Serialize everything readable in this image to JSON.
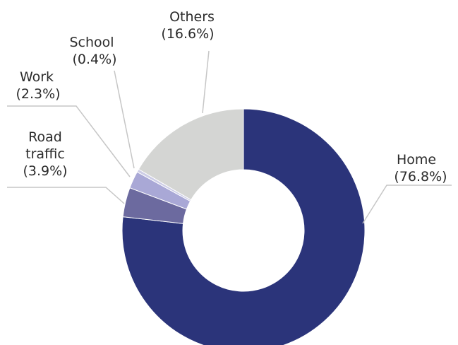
{
  "chart_data": {
    "type": "pie",
    "variant": "donut",
    "title": "",
    "legend": "none",
    "slices": [
      {
        "name": "Home",
        "value": 76.8,
        "value_label": "(76.8%)",
        "color": "#2b347a",
        "label_side": "right"
      },
      {
        "name": "Road traffic",
        "label_lines": [
          "Road",
          "traffic"
        ],
        "value": 3.9,
        "value_label": "(3.9%)",
        "color": "#6c6a9f",
        "label_side": "left"
      },
      {
        "name": "Work",
        "value": 2.3,
        "value_label": "(2.3%)",
        "color": "#a9a8d6",
        "label_side": "left"
      },
      {
        "name": "School",
        "value": 0.4,
        "value_label": "(0.4%)",
        "color": "#cdcde6",
        "label_side": "top"
      },
      {
        "name": "Others",
        "value": 16.6,
        "value_label": "(16.6%)",
        "color": "#d4d5d3",
        "label_side": "top"
      }
    ]
  }
}
